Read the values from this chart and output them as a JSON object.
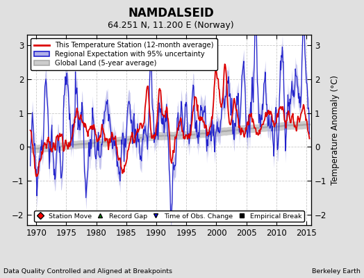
{
  "title": "NAMDALSEID",
  "subtitle": "64.251 N, 11.200 E (Norway)",
  "xlabel_left": "Data Quality Controlled and Aligned at Breakpoints",
  "xlabel_right": "Berkeley Earth",
  "ylabel": "Temperature Anomaly (°C)",
  "xlim": [
    1968.5,
    2015.8
  ],
  "ylim": [
    -2.3,
    3.3
  ],
  "yticks": [
    -2,
    -1,
    0,
    1,
    2,
    3
  ],
  "xticks": [
    1970,
    1975,
    1980,
    1985,
    1990,
    1995,
    2000,
    2005,
    2010,
    2015
  ],
  "bg_color": "#e0e0e0",
  "plot_bg_color": "#ffffff",
  "legend_entries": [
    "This Temperature Station (12-month average)",
    "Regional Expectation with 95% uncertainty",
    "Global Land (5-year average)"
  ],
  "station_color": "#dd0000",
  "regional_color": "#2222cc",
  "regional_fill_color": "#b0b0e8",
  "global_color": "#aaaaaa",
  "global_fill_color": "#cccccc",
  "marker_legend": [
    "Station Move",
    "Record Gap",
    "Time of Obs. Change",
    "Empirical Break"
  ]
}
